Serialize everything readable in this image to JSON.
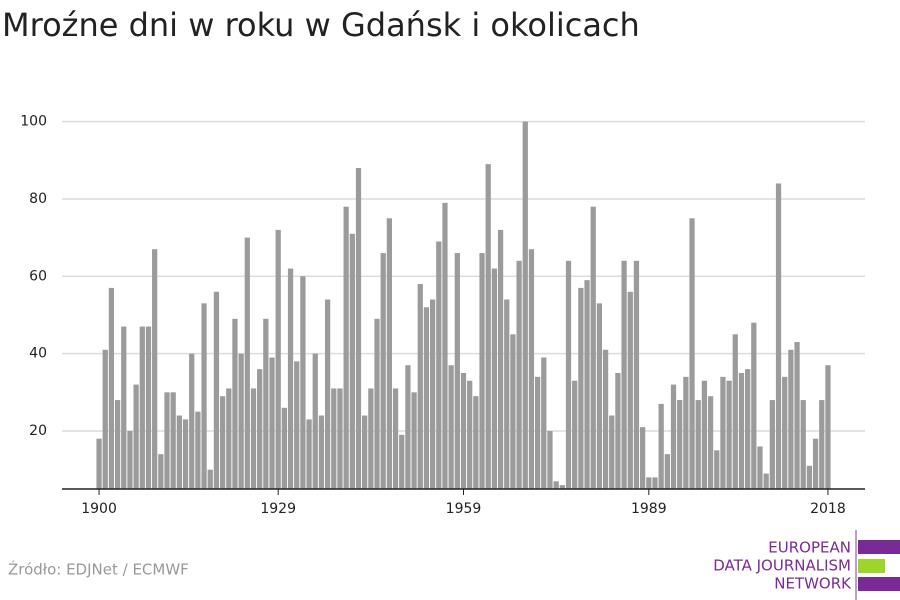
{
  "chart_data": {
    "type": "bar",
    "title": "Mroźne dni w roku w Gdańsk i okolicach",
    "source": "Źródło: EDJNet / ECMWF",
    "logo": [
      "EUROPEAN",
      "DATA JOURNALISM",
      "NETWORK"
    ],
    "color": "#9b9b9b",
    "x": [
      1900,
      1901,
      1902,
      1903,
      1904,
      1905,
      1906,
      1907,
      1908,
      1909,
      1910,
      1911,
      1912,
      1913,
      1914,
      1915,
      1916,
      1917,
      1918,
      1919,
      1920,
      1921,
      1922,
      1923,
      1924,
      1925,
      1926,
      1927,
      1928,
      1929,
      1930,
      1931,
      1932,
      1933,
      1934,
      1935,
      1936,
      1937,
      1938,
      1939,
      1940,
      1941,
      1942,
      1943,
      1944,
      1945,
      1946,
      1947,
      1948,
      1949,
      1950,
      1951,
      1952,
      1953,
      1954,
      1955,
      1956,
      1957,
      1958,
      1959,
      1960,
      1961,
      1962,
      1963,
      1964,
      1965,
      1966,
      1967,
      1968,
      1969,
      1970,
      1971,
      1972,
      1973,
      1974,
      1975,
      1976,
      1977,
      1978,
      1979,
      1980,
      1981,
      1982,
      1983,
      1984,
      1985,
      1986,
      1987,
      1988,
      1989,
      1990,
      1991,
      1992,
      1993,
      1994,
      1995,
      1996,
      1997,
      1998,
      1999,
      2000,
      2001,
      2002,
      2003,
      2004,
      2005,
      2006,
      2007,
      2008,
      2009,
      2010,
      2011,
      2012,
      2013,
      2014,
      2015,
      2016,
      2017,
      2018
    ],
    "values": [
      18,
      41,
      57,
      28,
      47,
      20,
      32,
      47,
      47,
      67,
      14,
      30,
      30,
      24,
      23,
      40,
      25,
      53,
      10,
      56,
      29,
      31,
      49,
      40,
      70,
      31,
      36,
      49,
      39,
      72,
      26,
      62,
      38,
      60,
      23,
      40,
      24,
      54,
      31,
      31,
      78,
      71,
      88,
      24,
      31,
      49,
      66,
      75,
      31,
      19,
      37,
      30,
      58,
      52,
      54,
      69,
      79,
      37,
      66,
      35,
      33,
      29,
      66,
      89,
      62,
      72,
      54,
      45,
      64,
      100,
      67,
      34,
      39,
      20,
      7,
      6,
      64,
      33,
      57,
      59,
      78,
      53,
      41,
      24,
      35,
      64,
      56,
      64,
      21,
      8,
      8,
      27,
      14,
      32,
      28,
      34,
      75,
      28,
      33,
      29,
      15,
      34,
      33,
      45,
      35,
      36,
      48,
      16,
      9,
      28,
      84,
      34,
      41,
      43,
      28,
      11,
      18,
      28,
      37
    ],
    "xlim": [
      1894,
      2024
    ],
    "xticks": [
      1900,
      1929,
      1959,
      1989,
      2018
    ],
    "ylim": [
      5,
      103
    ],
    "yticks": [
      20,
      40,
      60,
      80,
      100
    ],
    "grid": true
  }
}
